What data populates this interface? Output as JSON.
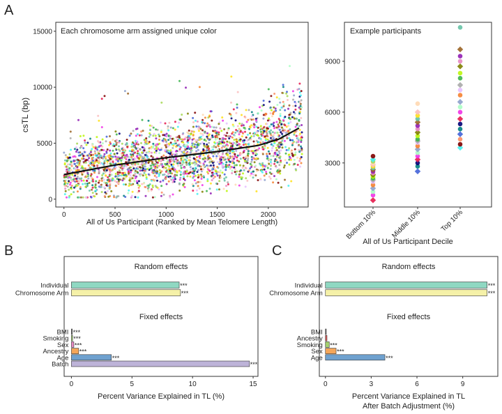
{
  "panel_labels": {
    "a": "A",
    "b": "B",
    "c": "C"
  },
  "chart_data": [
    {
      "id": "A-main",
      "type": "scatter",
      "annotation": "Each chromosome arm assigned unique color",
      "xlabel": "All of Us Participant (Ranked by Mean Telomere Length)",
      "ylabel": "csTL (bp)",
      "xlim": [
        -80,
        2390
      ],
      "ylim": [
        -700,
        15800
      ],
      "xticks": [
        0,
        500,
        1000,
        1500,
        2000
      ],
      "yticks": [
        0,
        5000,
        10000,
        15000
      ],
      "n_participants": 2330,
      "trend": {
        "x": [
          0,
          500,
          1000,
          1500,
          1900,
          2100,
          2300
        ],
        "y": [
          2200,
          3050,
          3700,
          4250,
          4800,
          5350,
          6350
        ]
      },
      "point_colors": [
        "#e6194b",
        "#3cb44b",
        "#ffe119",
        "#4363d8",
        "#f58231",
        "#911eb4",
        "#46f0f0",
        "#f032e6",
        "#bcf60c",
        "#fabebe",
        "#008080",
        "#e6beff",
        "#9a6324",
        "#800000",
        "#aaffc3",
        "#808000",
        "#ffd8b1",
        "#000075",
        "#a9a9a9",
        "#66c2a5",
        "#fc8d62",
        "#8da0cb",
        "#e78ac3",
        "#a6d854"
      ]
    },
    {
      "id": "A-examples",
      "type": "scatter",
      "annotation": "Example participants",
      "xlabel": "All of Us Participant Decile",
      "ylabel": "",
      "categories": [
        "Bottom 10%",
        "Middle 10%",
        "Top 10%"
      ],
      "ylim": [
        400,
        11300
      ],
      "yticks": [
        3000,
        6000,
        9000
      ],
      "series": [
        {
          "name": "Bottom 10%",
          "values": [
            800,
            1100,
            1300,
            1500,
            1700,
            1900,
            2000,
            2100,
            2200,
            2300,
            2400,
            2500,
            2600,
            2700,
            2800,
            2900,
            3000,
            3100,
            3200,
            3400
          ]
        },
        {
          "name": "Middle 10%",
          "values": [
            2500,
            2800,
            3000,
            3200,
            3400,
            3600,
            3800,
            4000,
            4200,
            4300,
            4400,
            4600,
            4800,
            5000,
            5200,
            5400,
            5600,
            5800,
            6000,
            6500
          ]
        },
        {
          "name": "Top 10%",
          "values": [
            3900,
            4100,
            4400,
            4700,
            5000,
            5300,
            5600,
            6000,
            6300,
            6600,
            7000,
            7300,
            7600,
            8000,
            8300,
            8700,
            9000,
            9300,
            9700,
            11000
          ]
        }
      ]
    },
    {
      "id": "B",
      "type": "bar",
      "orientation": "horizontal",
      "title_random": "Random effects",
      "title_fixed": "Fixed effects",
      "xlabel": "Percent Variance Explained in TL (%)",
      "xlim": [
        -0.6,
        15.4
      ],
      "xticks": [
        0,
        5,
        10,
        15
      ],
      "random": [
        {
          "label": "Individual",
          "value": 8.9,
          "sig": "***",
          "color": "#8fd8c2"
        },
        {
          "label": "Chromosome Arm",
          "value": 9.0,
          "sig": "***",
          "color": "#f5f1a8"
        }
      ],
      "fixed": [
        {
          "label": "BMI",
          "value": 0.05,
          "sig": "***",
          "color": "#666666"
        },
        {
          "label": "Smoking",
          "value": 0.1,
          "sig": "***",
          "color": "#a3d06f"
        },
        {
          "label": "Sex",
          "value": 0.2,
          "sig": "***",
          "color": "#e78ac3"
        },
        {
          "label": "Ancestry",
          "value": 0.6,
          "sig": "***",
          "color": "#f4a65a"
        },
        {
          "label": "Age",
          "value": 3.3,
          "sig": "***",
          "color": "#6fa1cf"
        },
        {
          "label": "Batch",
          "value": 14.7,
          "sig": "***",
          "color": "#bdb3d8"
        }
      ]
    },
    {
      "id": "C",
      "type": "bar",
      "orientation": "horizontal",
      "title_random": "Random effects",
      "title_fixed": "Fixed effects",
      "xlabel": "Percent Variance Explained in TL",
      "xlabel2": "After Batch Adjustment (%)",
      "xlim": [
        -0.4,
        11.3
      ],
      "xticks": [
        0,
        3,
        6,
        9
      ],
      "random": [
        {
          "label": "Individual",
          "value": 10.6,
          "sig": "***",
          "color": "#8fd8c2"
        },
        {
          "label": "Chromosome Arm",
          "value": 10.6,
          "sig": "***",
          "color": "#f5f1a8"
        }
      ],
      "fixed": [
        {
          "label": "BMI",
          "value": 0.03,
          "sig": "",
          "color": "#666666"
        },
        {
          "label": "Ancestry",
          "value": 0.1,
          "sig": "",
          "color": "#e05a5a"
        },
        {
          "label": "Smoking",
          "value": 0.25,
          "sig": "***",
          "color": "#a3d06f"
        },
        {
          "label": "Sex",
          "value": 0.7,
          "sig": "***",
          "color": "#f4a65a"
        },
        {
          "label": "Age",
          "value": 3.9,
          "sig": "***",
          "color": "#6fa1cf"
        }
      ]
    }
  ]
}
